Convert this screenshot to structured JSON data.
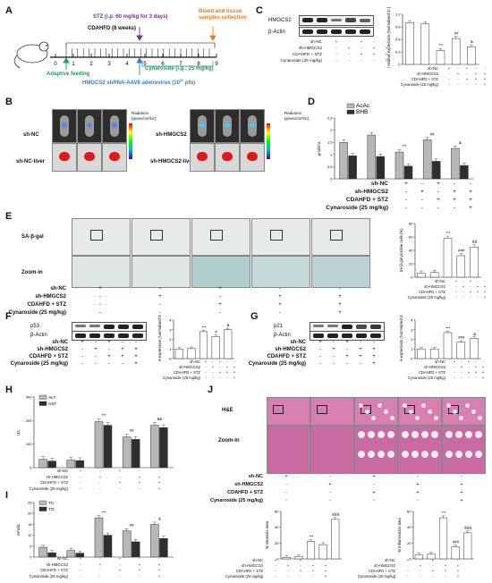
{
  "panels": {
    "A": {
      "letter": "A",
      "cdahfd": "CDAHFD (8 weeks)",
      "stz": "STZ (i.p. 60 mg/kg for 3 days)",
      "blood": "Blood and tissue",
      "blood2": "samples collection",
      "adaptive": "Adaptive feeding",
      "cyn": "Cynaroside (i.g.; 25 mg/kg)",
      "virus": "HMGCS2 shRNA-AAV8 adenovirus (10",
      "virus_exp": "11",
      "virus_end": " pfu)",
      "ticks": [
        "0",
        "1",
        "2",
        "3",
        "4",
        "5",
        "6",
        "7",
        "8",
        "9"
      ]
    },
    "B": {
      "letter": "B",
      "shnc": "sh-NC",
      "shnc_liver": "sh-NC-liver",
      "shh": "sh-HMGCS2",
      "shh_liver": "sh-HMGCS2-liver",
      "radiance": "Radiance",
      "radiance_unit": "(p/sec/cm²/sr)"
    },
    "C": {
      "letter": "C",
      "hmgcs2": "HMGCS2",
      "actin": "β-Actin",
      "ylabel": "HMGCS2 relative expression (Normalized to β-actin)"
    },
    "D": {
      "letter": "D",
      "ylabel": "μmol/mL",
      "acac": "AcAc",
      "bhb": "BHB"
    },
    "E": {
      "letter": "E",
      "sagal": "SA-β-gal",
      "zoom": "Zoom-in",
      "ylabel": "SA-β-gal positive cells (%)"
    },
    "F": {
      "letter": "F",
      "p53": "p53",
      "actin": "β-Actin",
      "ylabel": "p53 relative expression (Normalized to β-actin)"
    },
    "G": {
      "letter": "G",
      "p21": "p21",
      "actin": "β-Actin",
      "ylabel": "p21 relative expression (Normalized to β-actin)"
    },
    "H": {
      "letter": "H",
      "ylabel": "U/L",
      "alt": "ALT",
      "ast": "AST"
    },
    "I": {
      "letter": "I",
      "ylabel": "mmol/L",
      "tc": "TC",
      "tg": "TG"
    },
    "J": {
      "letter": "J",
      "he": "H&E",
      "zoom": "Zoom-in",
      "y1": "% steatosis area",
      "y2": "% Inflammation area"
    }
  },
  "groups": {
    "rows": [
      "sh-NC",
      "sh-HMGCS2",
      "CDAHFD + STZ",
      "Cynaroside (25 mg/kg)"
    ],
    "rows_short": [
      "sh-NC",
      "sh-HMGCS2",
      "CDAHFD + STZ"
    ],
    "matrix": [
      [
        "+",
        "-",
        "+",
        "-",
        "-"
      ],
      [
        "-",
        "+",
        "-",
        "+",
        "+"
      ],
      [
        "-",
        "-",
        "+",
        "+",
        "+"
      ],
      [
        "-",
        "-",
        "-",
        "-",
        "+"
      ]
    ]
  },
  "chart_data": [
    {
      "panel": "C",
      "type": "bar",
      "values": [
        1.0,
        0.97,
        0.33,
        0.62,
        0.42
      ],
      "ylim": [
        0,
        1.2
      ],
      "annotations": [
        "",
        "",
        "***",
        "##",
        "&"
      ]
    },
    {
      "panel": "D",
      "type": "bar",
      "series": [
        {
          "name": "AcAc",
          "values": [
            1.5,
            1.8,
            1.1,
            1.6,
            1.25
          ]
        },
        {
          "name": "BHB",
          "values": [
            0.95,
            0.92,
            0.52,
            0.72,
            0.55
          ]
        }
      ],
      "ylim": [
        0,
        2.5
      ],
      "annotations": [
        "",
        "",
        "***",
        "##",
        "&"
      ]
    },
    {
      "panel": "E",
      "type": "bar",
      "values": [
        6,
        7,
        58,
        32,
        45
      ],
      "ylim": [
        0,
        80
      ],
      "annotations": [
        "",
        "",
        "***",
        "###",
        "&&"
      ]
    },
    {
      "panel": "F",
      "type": "bar",
      "values": [
        1.0,
        1.05,
        2.8,
        2.3,
        3.0
      ],
      "ylim": [
        0,
        4
      ],
      "annotations": [
        "",
        "",
        "***",
        "#",
        "&"
      ]
    },
    {
      "panel": "G",
      "type": "bar",
      "values": [
        1.0,
        1.0,
        2.7,
        1.7,
        2.1
      ],
      "ylim": [
        0,
        4
      ],
      "annotations": [
        "",
        "",
        "***",
        "###",
        "&"
      ]
    },
    {
      "panel": "H",
      "type": "bar",
      "series": [
        {
          "name": "ALT",
          "values": [
            35,
            32,
            195,
            130,
            180
          ]
        },
        {
          "name": "AST",
          "values": [
            28,
            30,
            180,
            120,
            170
          ]
        }
      ],
      "ylim": [
        0,
        300
      ],
      "annotations": [
        "",
        "",
        "***",
        "##",
        "&&"
      ]
    },
    {
      "panel": "I",
      "type": "bar",
      "series": [
        {
          "name": "TC",
          "values": [
            4.5,
            3.0,
            18.0,
            12.0,
            15.0
          ]
        },
        {
          "name": "TG",
          "values": [
            2.0,
            1.8,
            10.0,
            7.0,
            8.5
          ]
        }
      ],
      "ylim": [
        0,
        25
      ],
      "annotations": [
        "",
        "",
        "***",
        "##",
        "&"
      ]
    },
    {
      "panel": "J-steatosis",
      "type": "bar",
      "values": [
        2,
        3,
        22,
        18,
        50
      ],
      "ylim": [
        0,
        60
      ],
      "annotations": [
        "",
        "",
        "***",
        "",
        "&&&"
      ]
    },
    {
      "panel": "J-inflammation",
      "type": "bar",
      "values": [
        5,
        6,
        52,
        15,
        33
      ],
      "ylim": [
        0,
        60
      ],
      "annotations": [
        "",
        "",
        "***",
        "###",
        "&&&"
      ]
    }
  ]
}
